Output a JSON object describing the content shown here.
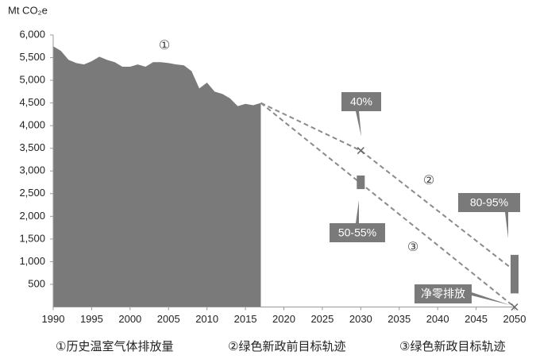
{
  "chart_data": {
    "type": "area",
    "y_label": "Mt CO₂e",
    "xlim": [
      1990,
      2050
    ],
    "xticks": [
      1990,
      1995,
      2000,
      2005,
      2010,
      2015,
      2020,
      2025,
      2030,
      2035,
      2040,
      2045,
      2050
    ],
    "ylim": [
      0,
      6000
    ],
    "yticks": [
      500,
      {
        "value": 1000,
        "label": "1,000"
      },
      {
        "value": 1500,
        "label": "1,500"
      },
      {
        "value": 2000,
        "label": "2,000"
      },
      {
        "value": 2500,
        "label": "2,500"
      },
      {
        "value": 3000,
        "label": "3,000"
      },
      {
        "value": 3500,
        "label": "3,500"
      },
      {
        "value": 4000,
        "label": "4,000"
      },
      {
        "value": 4500,
        "label": "4,500"
      },
      {
        "value": 5000,
        "label": "5,000"
      },
      {
        "value": 5500,
        "label": "5,500"
      },
      {
        "value": 6000,
        "label": "6,000"
      }
    ],
    "series": [
      {
        "name": "①历史温室气体排放量",
        "tag": "①",
        "color": "#7a7a7a",
        "x": [
          1990,
          1991,
          1992,
          1993,
          1994,
          1995,
          1996,
          1997,
          1998,
          1999,
          2000,
          2001,
          2002,
          2003,
          2004,
          2005,
          2006,
          2007,
          2008,
          2009,
          2010,
          2011,
          2012,
          2013,
          2014,
          2015,
          2016,
          2017
        ],
        "values": [
          5750,
          5650,
          5450,
          5380,
          5350,
          5420,
          5520,
          5450,
          5400,
          5300,
          5300,
          5350,
          5300,
          5400,
          5400,
          5380,
          5350,
          5330,
          5200,
          4820,
          4950,
          4750,
          4700,
          4600,
          4430,
          4480,
          4450,
          4500
        ]
      },
      {
        "name": "②绿色新政前目标轨迹",
        "tag": "②",
        "color": "#8a8a8a",
        "x": [
          2017,
          2030,
          2050
        ],
        "values": [
          4500,
          3450,
          800
        ]
      },
      {
        "name": "③绿色新政目标轨迹",
        "tag": "③",
        "color": "#8a8a8a",
        "x": [
          2017,
          2050
        ],
        "values": [
          4500,
          0
        ]
      }
    ],
    "ranges": [
      {
        "x": 2030,
        "low": 2600,
        "high": 2900,
        "label": "50-55%"
      },
      {
        "x": 2050,
        "low": 300,
        "high": 1150,
        "label": "80-95%"
      }
    ],
    "annotations": [
      "40%",
      "净零排放"
    ]
  }
}
